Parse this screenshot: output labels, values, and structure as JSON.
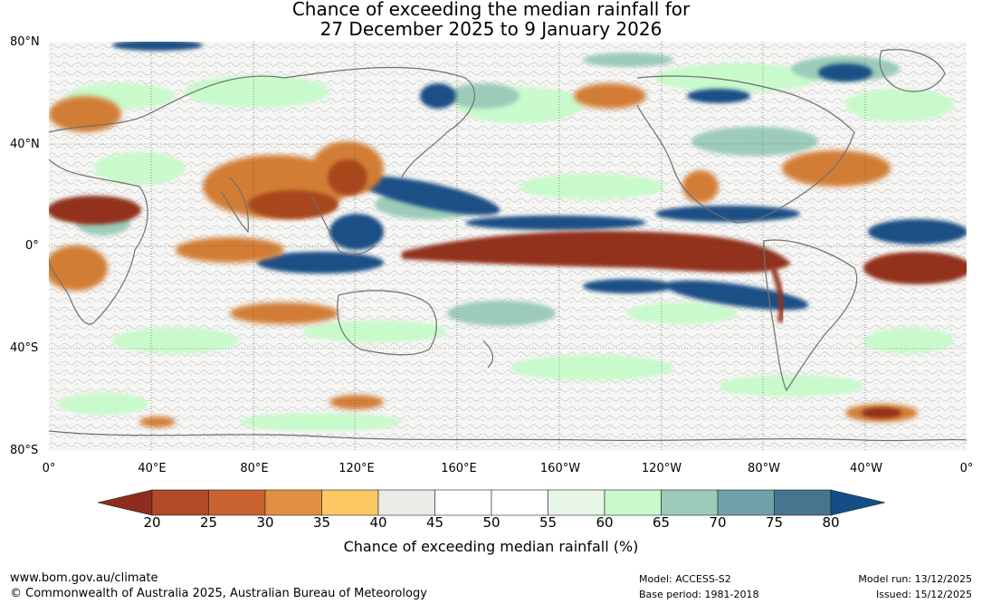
{
  "title": {
    "line1": "Chance of exceeding the median rainfall for",
    "line2": "27 December 2025 to 9 January 2026"
  },
  "map": {
    "lat_labels": [
      "80°N",
      "40°N",
      "0°",
      "40°S",
      "80°S"
    ],
    "lon_labels": [
      "0°",
      "40°E",
      "80°E",
      "120°E",
      "160°E",
      "160°W",
      "120°W",
      "80°W",
      "40°W",
      "0°"
    ]
  },
  "colorbar": {
    "ticks": [
      "20",
      "25",
      "30",
      "35",
      "40",
      "45",
      "50",
      "55",
      "60",
      "65",
      "70",
      "75",
      "80"
    ],
    "colors": [
      "#8e2d1d",
      "#b14a26",
      "#c8632f",
      "#e09040",
      "#fcc864",
      "#ebebe6",
      "#ffffff",
      "#ffffff",
      "#e8f6e8",
      "#c8facb",
      "#9cccb9",
      "#6ea0a8",
      "#467590",
      "#144e87"
    ],
    "label": "Chance of exceeding median rainfall (%)"
  },
  "footer": {
    "website": "www.bom.gov.au/climate",
    "copyright": "© Commonwealth of Australia 2025, Australian Bureau of Meteorology",
    "model": "Model: ACCESS-S2",
    "base_period": "Base period: 1981-2018",
    "model_run": "Model run: 13/12/2025",
    "issued": "Issued: 15/12/2025"
  }
}
